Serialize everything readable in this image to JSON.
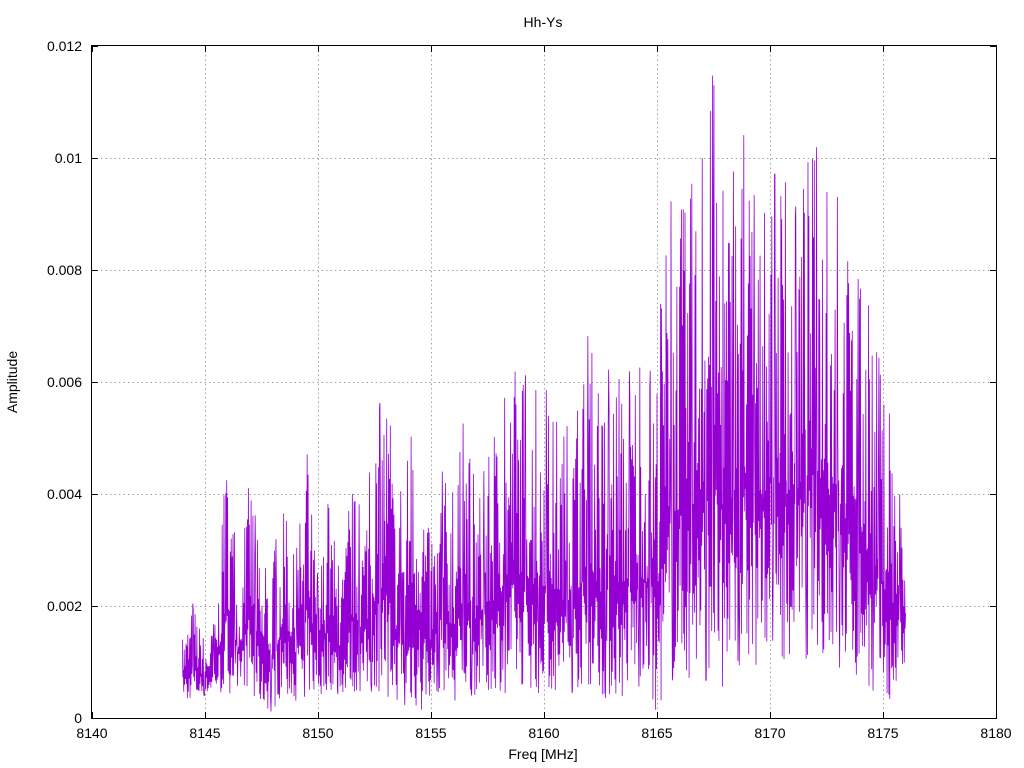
{
  "chart_data": {
    "type": "line",
    "title": "Hh-Ys",
    "xlabel": "Freq [MHz]",
    "ylabel": "Amplitude",
    "xlim": [
      8140,
      8180
    ],
    "ylim": [
      0,
      0.012
    ],
    "x_ticks": [
      "8140",
      "8145",
      "8150",
      "8155",
      "8160",
      "8165",
      "8170",
      "8175",
      "8180"
    ],
    "y_ticks": [
      "0",
      "0.002",
      "0.004",
      "0.006",
      "0.008",
      "0.01",
      "0.012"
    ],
    "grid": true,
    "line_color": "#9400d3",
    "series": [
      {
        "x_range": [
          8144,
          8176
        ],
        "sampled_envelope": [
          [
            8144.0,
            0.0004,
            0.0014
          ],
          [
            8144.5,
            0.0003,
            0.0021
          ],
          [
            8145.0,
            0.0004,
            0.0013
          ],
          [
            8145.5,
            0.0005,
            0.0018
          ],
          [
            8146.0,
            0.0004,
            0.005
          ],
          [
            8146.5,
            0.0006,
            0.0022
          ],
          [
            8147.0,
            0.0005,
            0.0045
          ],
          [
            8147.5,
            0.0002,
            0.0025
          ],
          [
            8148.0,
            0.0001,
            0.003
          ],
          [
            8148.5,
            0.0005,
            0.0037
          ],
          [
            8149.0,
            0.0003,
            0.0028
          ],
          [
            8149.5,
            0.0004,
            0.0048
          ],
          [
            8150.0,
            0.0004,
            0.0025
          ],
          [
            8150.5,
            0.0005,
            0.004
          ],
          [
            8151.0,
            0.0004,
            0.0024
          ],
          [
            8151.5,
            0.0005,
            0.0042
          ],
          [
            8152.0,
            0.0004,
            0.0036
          ],
          [
            8152.5,
            0.0005,
            0.005
          ],
          [
            8153.0,
            0.0004,
            0.0063
          ],
          [
            8153.5,
            0.0003,
            0.0036
          ],
          [
            8154.0,
            0.0002,
            0.005
          ],
          [
            8154.5,
            0.0001,
            0.0051
          ],
          [
            8155.0,
            0.0004,
            0.003
          ],
          [
            8155.5,
            0.0005,
            0.0044
          ],
          [
            8156.0,
            0.0003,
            0.004
          ],
          [
            8156.5,
            0.0004,
            0.0055
          ],
          [
            8157.0,
            0.0004,
            0.004
          ],
          [
            8157.5,
            0.0005,
            0.0046
          ],
          [
            8158.0,
            0.0005,
            0.0053
          ],
          [
            8158.5,
            0.0004,
            0.0061
          ],
          [
            8159.0,
            0.0006,
            0.0063
          ],
          [
            8159.5,
            0.0005,
            0.0058
          ],
          [
            8160.0,
            0.0004,
            0.006
          ],
          [
            8160.5,
            0.0005,
            0.0053
          ],
          [
            8161.0,
            0.0004,
            0.0052
          ],
          [
            8161.5,
            0.0005,
            0.0055
          ],
          [
            8162.0,
            0.0006,
            0.007
          ],
          [
            8162.5,
            0.0004,
            0.0055
          ],
          [
            8163.0,
            0.0003,
            0.0065
          ],
          [
            8163.5,
            0.0004,
            0.0058
          ],
          [
            8164.0,
            0.0006,
            0.0065
          ],
          [
            8164.5,
            0.0005,
            0.006
          ],
          [
            8165.0,
            0.0001,
            0.0065
          ],
          [
            8165.5,
            0.0006,
            0.0093
          ],
          [
            8166.0,
            0.0008,
            0.009
          ],
          [
            8166.5,
            0.0007,
            0.0095
          ],
          [
            8167.0,
            0.0006,
            0.01
          ],
          [
            8167.5,
            0.0008,
            0.0116
          ],
          [
            8168.0,
            0.0005,
            0.009
          ],
          [
            8168.5,
            0.001,
            0.01
          ],
          [
            8169.0,
            0.0008,
            0.0106
          ],
          [
            8169.5,
            0.001,
            0.0085
          ],
          [
            8170.0,
            0.0015,
            0.0095
          ],
          [
            8170.5,
            0.001,
            0.01
          ],
          [
            8171.0,
            0.0012,
            0.0088
          ],
          [
            8171.5,
            0.001,
            0.01
          ],
          [
            8172.0,
            0.0013,
            0.0103
          ],
          [
            8172.5,
            0.0011,
            0.0094
          ],
          [
            8173.0,
            0.0009,
            0.0093
          ],
          [
            8173.5,
            0.0009,
            0.008
          ],
          [
            8174.0,
            0.0007,
            0.0078
          ],
          [
            8174.5,
            0.0005,
            0.0072
          ],
          [
            8175.0,
            0.0004,
            0.006
          ],
          [
            8175.5,
            0.0003,
            0.005
          ],
          [
            8176.0,
            0.0009,
            0.0029
          ]
        ]
      }
    ]
  }
}
